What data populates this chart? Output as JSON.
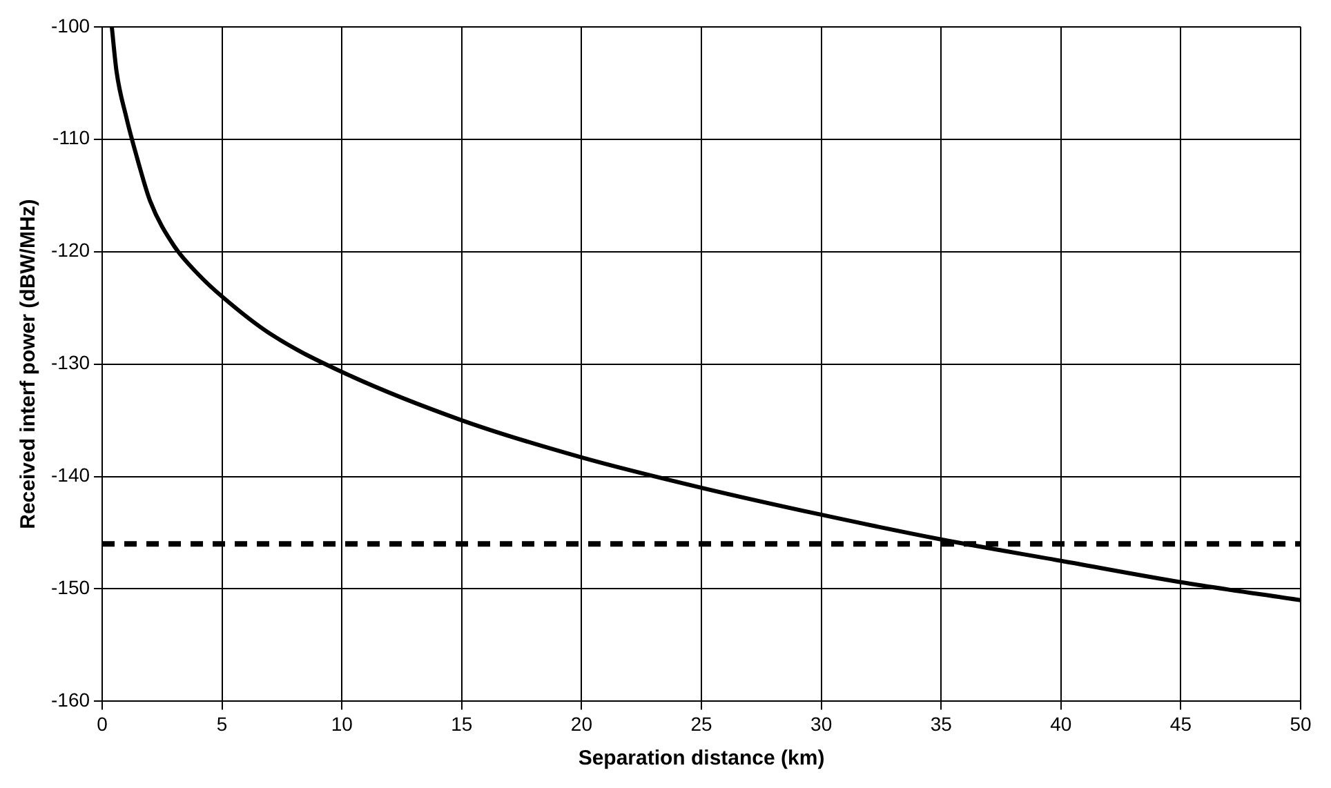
{
  "chart_data": {
    "type": "line",
    "xlabel": "Separation distance (km)",
    "ylabel": "Received interf power (dBW/MHz)",
    "xlim": [
      0,
      50
    ],
    "xticks": [
      0,
      5,
      10,
      15,
      20,
      25,
      30,
      35,
      40,
      45,
      50
    ],
    "ylim": [
      -160,
      -100
    ],
    "yticks": [
      -160,
      -150,
      -140,
      -130,
      -120,
      -110,
      -100
    ],
    "grid": true,
    "legend": false,
    "marker": "none",
    "line_style": "solid",
    "series": [
      {
        "color": "#000000",
        "x": [
          0.4,
          0.6,
          1,
          1.5,
          2,
          3,
          4,
          5,
          7,
          10,
          15,
          20,
          25,
          30,
          35,
          40,
          45,
          50
        ],
        "values": [
          -100,
          -104,
          -108,
          -112,
          -115.5,
          -119.5,
          -122,
          -124,
          -127.3,
          -130.7,
          -135,
          -138.3,
          -141,
          -143.4,
          -145.6,
          -147.5,
          -149.4,
          -151
        ]
      }
    ],
    "ref_lines": [
      {
        "axis": "y",
        "value": -146,
        "color": "#000000",
        "line_style": "dashed"
      }
    ]
  }
}
